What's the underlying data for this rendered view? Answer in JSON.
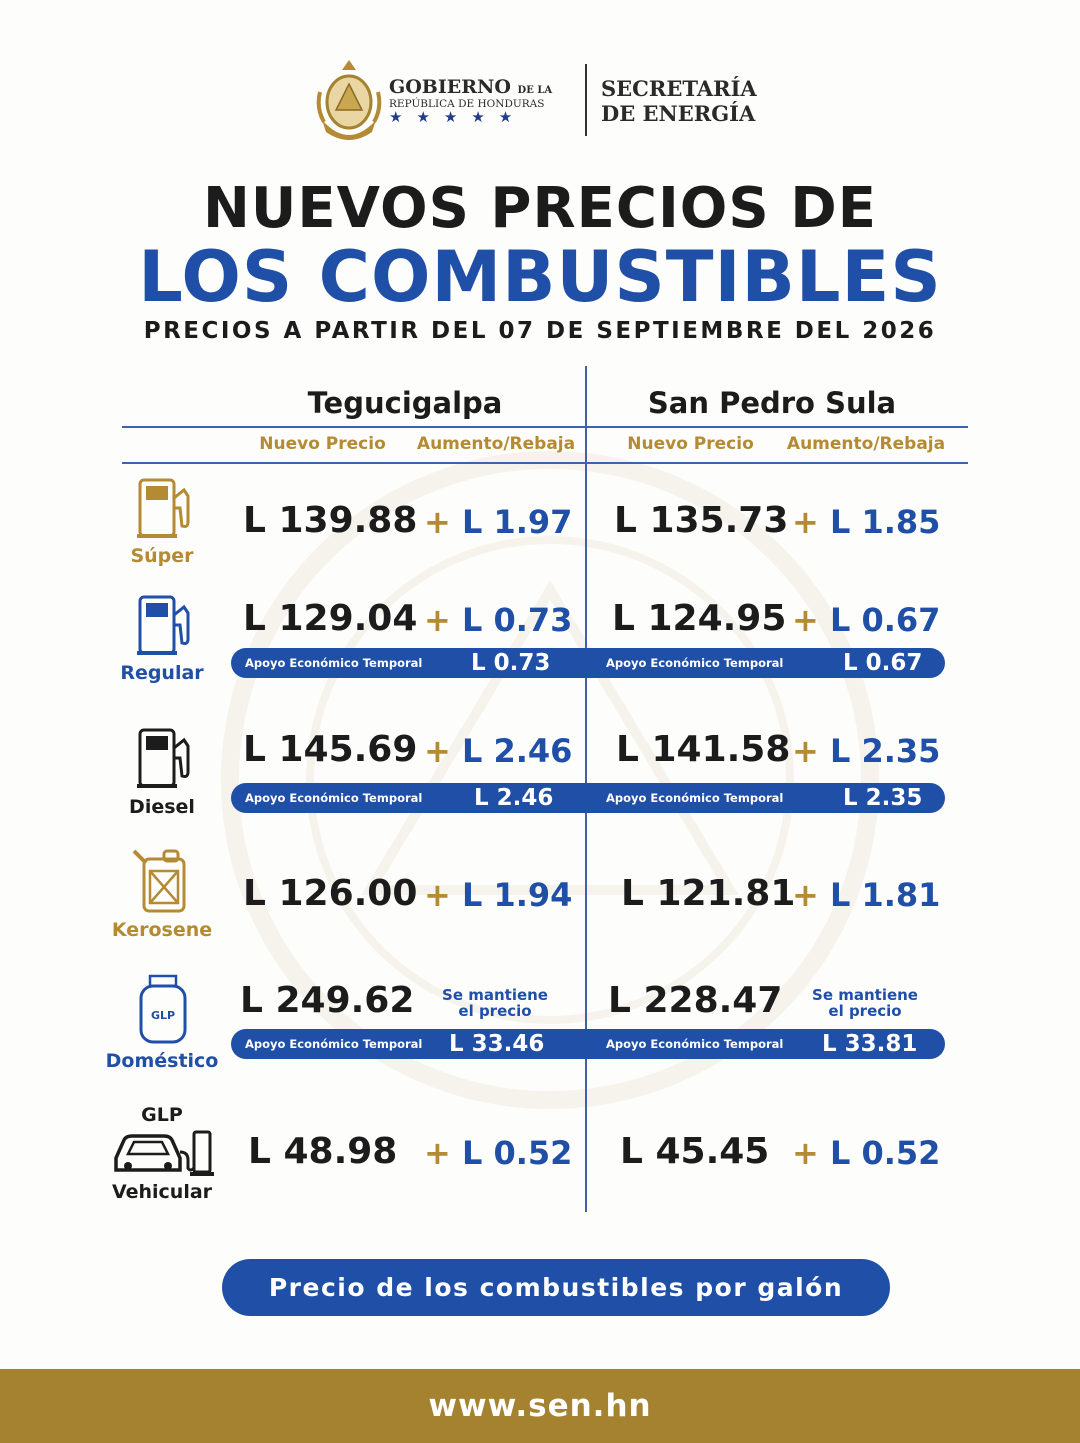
{
  "header": {
    "gov_line1_main": "GOBIERNO",
    "gov_line1_small": "DE LA",
    "gov_line2": "REPÚBLICA DE HONDURAS",
    "stars": "★★★★★",
    "sec_line1": "SECRETARÍA",
    "sec_line2": "DE ENERGÍA"
  },
  "title": {
    "line1": "NUEVOS PRECIOS DE",
    "line2": "LOS COMBUSTIBLES",
    "subtitle": "PRECIOS A PARTIR DEL 07 DE SEPTIEMBRE DEL 2026"
  },
  "cities": {
    "tgu": "Tegucigalpa",
    "sps": "San Pedro Sula"
  },
  "columns": {
    "nuevo_precio": "Nuevo Precio",
    "aumento": "Aumento/Rebaja"
  },
  "apoyo_label": "Apoyo Económico Temporal",
  "plus": "+",
  "fuels": {
    "super": {
      "label": "Súper",
      "tgu_price": "L 139.88",
      "tgu_change": "L 1.97",
      "sps_price": "L 135.73",
      "sps_change": "L 1.85"
    },
    "regular": {
      "label": "Regular",
      "tgu_price": "L 129.04",
      "tgu_change": "L 0.73",
      "sps_price": "L 124.95",
      "sps_change": "L 0.67",
      "tgu_apoyo": "L 0.73",
      "sps_apoyo": "L 0.67"
    },
    "diesel": {
      "label": "Diesel",
      "tgu_price": "L 145.69",
      "tgu_change": "L 2.46",
      "sps_price": "L 141.58",
      "sps_change": "L 2.35",
      "tgu_apoyo": "L 2.46",
      "sps_apoyo": "L 2.35"
    },
    "kerosene": {
      "label": "Kerosene",
      "tgu_price": "L 126.00",
      "tgu_change": "L 1.94",
      "sps_price": "L 121.81",
      "sps_change": "L 1.81"
    },
    "domestico": {
      "label": "Doméstico",
      "icon_text": "GLP",
      "tgu_price": "L 249.62",
      "sps_price": "L 228.47",
      "mantiene_l1": "Se mantiene",
      "mantiene_l2": "el precio",
      "tgu_apoyo": "L 33.46",
      "sps_apoyo": "L 33.81"
    },
    "vehicular": {
      "label_top": "GLP",
      "label": "Vehicular",
      "tgu_price": "L 48.98",
      "tgu_change": "L 0.52",
      "sps_price": "L 45.45",
      "sps_change": "L 0.52"
    }
  },
  "footer": {
    "pill": "Precio de los combustibles por galón",
    "website": "www.sen.hn"
  },
  "colors": {
    "blue": "#1f4fa6",
    "gold": "#b48a33",
    "bottom_bar": "#a4822f",
    "dark": "#1c1c1c"
  }
}
